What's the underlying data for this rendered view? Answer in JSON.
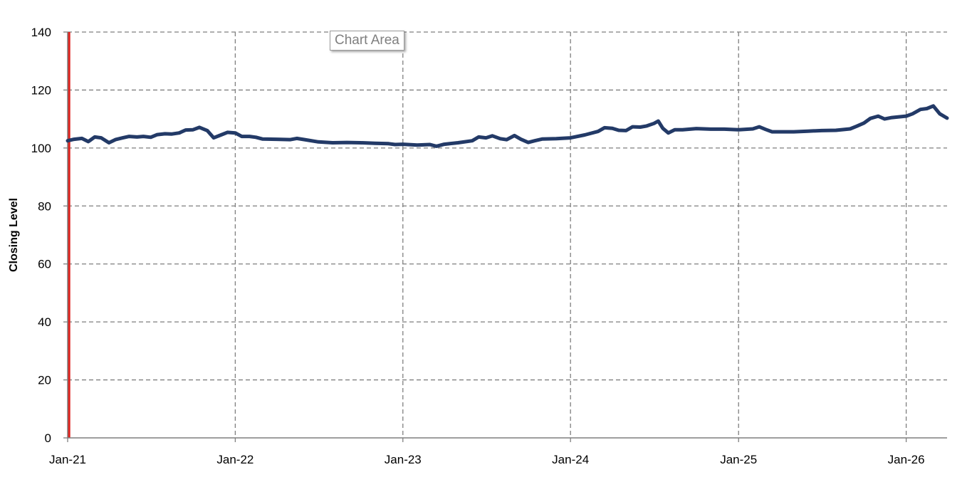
{
  "tooltip": {
    "text": "Chart Area"
  },
  "chart_data": {
    "type": "line",
    "title": "",
    "xlabel": "",
    "ylabel": "Closing Level",
    "ylim": [
      0,
      140
    ],
    "yticks": [
      0,
      20,
      40,
      60,
      80,
      100,
      120,
      140
    ],
    "xlim": [
      "2021-01-01",
      "2026-03-31"
    ],
    "xticks": [
      {
        "date": "2021-01-01",
        "label": "Jan-21"
      },
      {
        "date": "2022-01-01",
        "label": "Jan-22"
      },
      {
        "date": "2023-01-01",
        "label": "Jan-23"
      },
      {
        "date": "2024-01-01",
        "label": "Jan-24"
      },
      {
        "date": "2025-01-01",
        "label": "Jan-25"
      },
      {
        "date": "2026-01-01",
        "label": "Jan-26"
      }
    ],
    "grid": true,
    "legend": "none",
    "reference_line": {
      "date": "2021-01-04",
      "color": "#e0211c"
    },
    "series": [
      {
        "color": "#233a67",
        "points": [
          [
            "2021-01-01",
            102.5
          ],
          [
            "2021-01-15",
            103.0
          ],
          [
            "2021-02-01",
            103.3
          ],
          [
            "2021-02-15",
            102.2
          ],
          [
            "2021-03-01",
            103.8
          ],
          [
            "2021-03-15",
            103.5
          ],
          [
            "2021-04-01",
            101.8
          ],
          [
            "2021-04-15",
            102.9
          ],
          [
            "2021-05-01",
            103.5
          ],
          [
            "2021-05-15",
            104.0
          ],
          [
            "2021-06-01",
            103.8
          ],
          [
            "2021-06-15",
            104.0
          ],
          [
            "2021-07-01",
            103.7
          ],
          [
            "2021-07-15",
            104.6
          ],
          [
            "2021-08-01",
            104.9
          ],
          [
            "2021-08-15",
            104.8
          ],
          [
            "2021-09-01",
            105.2
          ],
          [
            "2021-09-15",
            106.2
          ],
          [
            "2021-10-01",
            106.3
          ],
          [
            "2021-10-15",
            107.1
          ],
          [
            "2021-11-01",
            106.0
          ],
          [
            "2021-11-15",
            103.5
          ],
          [
            "2021-12-01",
            104.5
          ],
          [
            "2021-12-15",
            105.4
          ],
          [
            "2022-01-01",
            105.2
          ],
          [
            "2022-01-15",
            104.0
          ],
          [
            "2022-02-01",
            104.0
          ],
          [
            "2022-02-15",
            103.7
          ],
          [
            "2022-03-01",
            103.1
          ],
          [
            "2022-04-01",
            103.0
          ],
          [
            "2022-05-01",
            102.9
          ],
          [
            "2022-05-15",
            103.3
          ],
          [
            "2022-06-01",
            102.9
          ],
          [
            "2022-07-01",
            102.1
          ],
          [
            "2022-08-01",
            101.8
          ],
          [
            "2022-09-01",
            101.9
          ],
          [
            "2022-10-01",
            101.8
          ],
          [
            "2022-11-01",
            101.6
          ],
          [
            "2022-12-01",
            101.5
          ],
          [
            "2022-12-15",
            101.2
          ],
          [
            "2023-01-01",
            101.3
          ],
          [
            "2023-02-01",
            101.0
          ],
          [
            "2023-03-01",
            101.2
          ],
          [
            "2023-03-15",
            100.6
          ],
          [
            "2023-04-01",
            101.3
          ],
          [
            "2023-05-01",
            101.8
          ],
          [
            "2023-06-01",
            102.5
          ],
          [
            "2023-06-15",
            103.8
          ],
          [
            "2023-07-01",
            103.5
          ],
          [
            "2023-07-15",
            104.2
          ],
          [
            "2023-08-01",
            103.2
          ],
          [
            "2023-08-15",
            102.9
          ],
          [
            "2023-09-01",
            104.3
          ],
          [
            "2023-09-15",
            103.0
          ],
          [
            "2023-10-01",
            101.9
          ],
          [
            "2023-10-15",
            102.5
          ],
          [
            "2023-11-01",
            103.1
          ],
          [
            "2023-12-01",
            103.2
          ],
          [
            "2024-01-01",
            103.5
          ],
          [
            "2024-02-01",
            104.5
          ],
          [
            "2024-03-01",
            105.7
          ],
          [
            "2024-03-15",
            107.0
          ],
          [
            "2024-04-01",
            106.8
          ],
          [
            "2024-04-15",
            106.1
          ],
          [
            "2024-05-01",
            106.0
          ],
          [
            "2024-05-15",
            107.3
          ],
          [
            "2024-06-01",
            107.2
          ],
          [
            "2024-06-15",
            107.6
          ],
          [
            "2024-07-01",
            108.5
          ],
          [
            "2024-07-10",
            109.3
          ],
          [
            "2024-07-20",
            106.8
          ],
          [
            "2024-08-01",
            105.2
          ],
          [
            "2024-08-15",
            106.3
          ],
          [
            "2024-09-01",
            106.3
          ],
          [
            "2024-10-01",
            106.7
          ],
          [
            "2024-11-01",
            106.5
          ],
          [
            "2024-12-01",
            106.5
          ],
          [
            "2025-01-01",
            106.3
          ],
          [
            "2025-02-01",
            106.6
          ],
          [
            "2025-02-15",
            107.3
          ],
          [
            "2025-03-01",
            106.4
          ],
          [
            "2025-03-15",
            105.6
          ],
          [
            "2025-04-01",
            105.6
          ],
          [
            "2025-05-01",
            105.6
          ],
          [
            "2025-06-01",
            105.8
          ],
          [
            "2025-07-01",
            106.0
          ],
          [
            "2025-08-01",
            106.1
          ],
          [
            "2025-09-01",
            106.6
          ],
          [
            "2025-09-15",
            107.5
          ],
          [
            "2025-10-01",
            108.6
          ],
          [
            "2025-10-15",
            110.2
          ],
          [
            "2025-11-01",
            111.0
          ],
          [
            "2025-11-15",
            110.0
          ],
          [
            "2025-12-01",
            110.5
          ],
          [
            "2026-01-01",
            111.0
          ],
          [
            "2026-01-15",
            111.8
          ],
          [
            "2026-02-01",
            113.3
          ],
          [
            "2026-02-15",
            113.6
          ],
          [
            "2026-03-01",
            114.5
          ],
          [
            "2026-03-15",
            111.8
          ],
          [
            "2026-03-31",
            110.3
          ]
        ]
      }
    ]
  }
}
